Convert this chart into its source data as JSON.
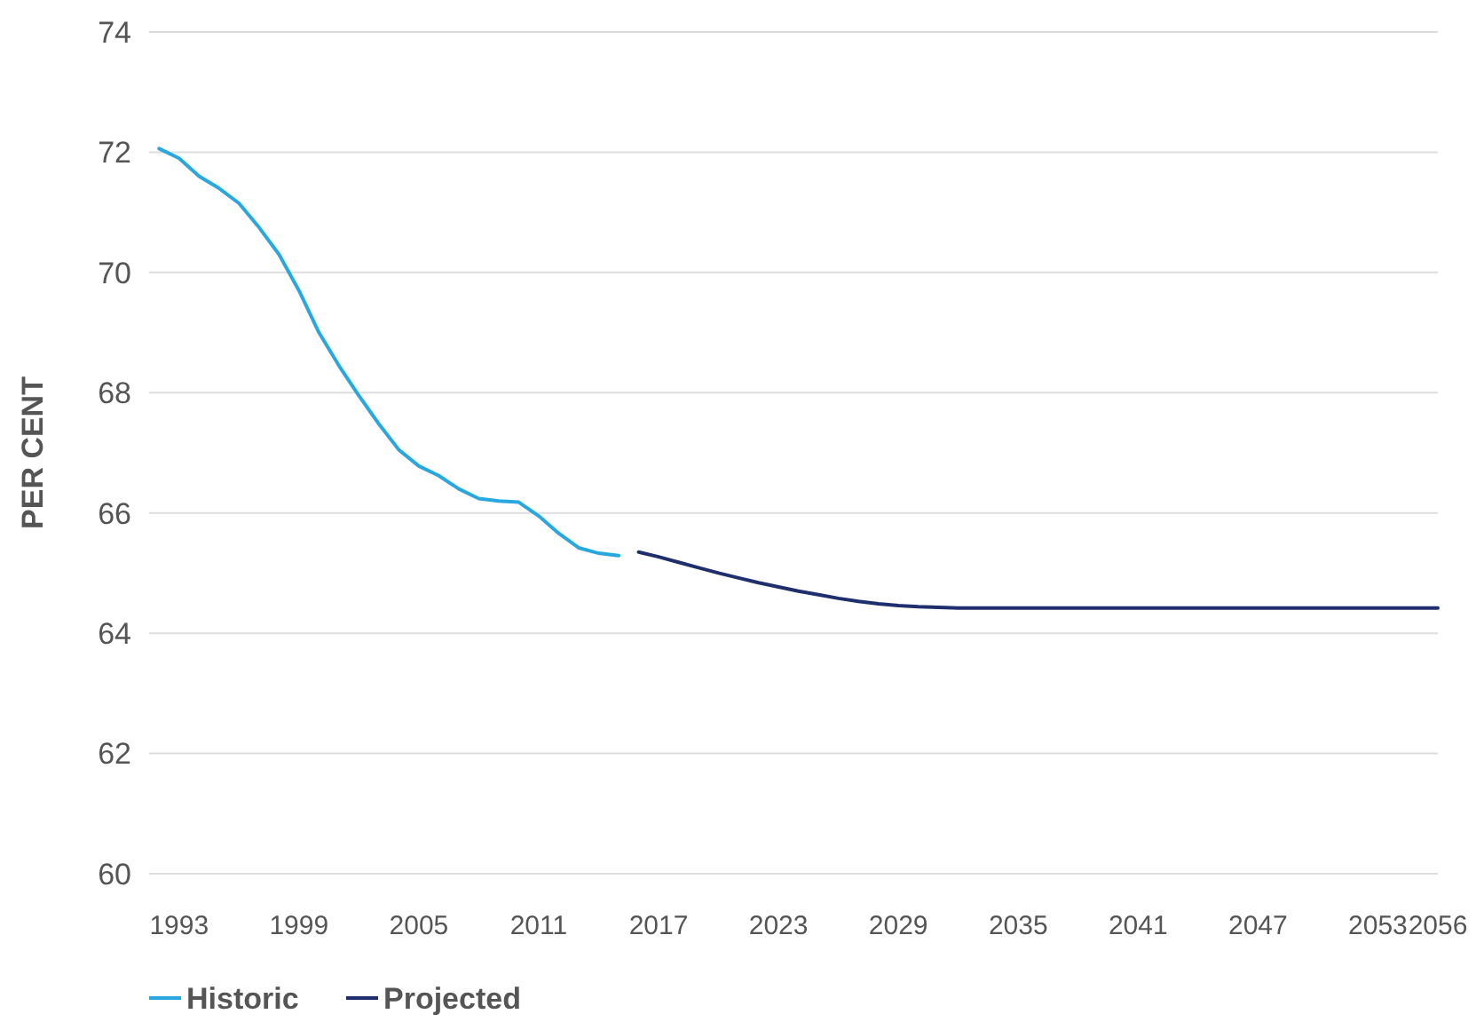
{
  "chart_data": {
    "type": "line",
    "ylabel": "PER CENT",
    "xlim": [
      1991.5,
      2056
    ],
    "ylim": [
      60,
      74
    ],
    "yticks": [
      60,
      62,
      64,
      66,
      68,
      70,
      72,
      74
    ],
    "xticks": [
      1993,
      1999,
      2005,
      2011,
      2017,
      2023,
      2029,
      2035,
      2041,
      2047,
      2053,
      2056
    ],
    "grid": "y",
    "legend": "bottom",
    "marker": "none",
    "line_style": "solid",
    "series": [
      {
        "name": "Historic",
        "color": "#29a8e0",
        "x": [
          1992,
          1993,
          1994,
          1995,
          1996,
          1997,
          1998,
          1999,
          2000,
          2001,
          2002,
          2003,
          2004,
          2005,
          2006,
          2007,
          2008,
          2009,
          2010,
          2011,
          2012,
          2013,
          2014,
          2015
        ],
        "values": [
          72.06,
          71.9,
          71.6,
          71.4,
          71.15,
          70.75,
          70.3,
          69.7,
          69.0,
          68.45,
          67.95,
          67.48,
          67.05,
          66.78,
          66.62,
          66.4,
          66.24,
          66.2,
          66.18,
          65.95,
          65.66,
          65.42,
          65.33,
          65.29
        ]
      },
      {
        "name": "Projected",
        "color": "#1f2f6e",
        "x": [
          2016,
          2017,
          2018,
          2019,
          2020,
          2021,
          2022,
          2023,
          2024,
          2025,
          2026,
          2027,
          2028,
          2029,
          2030,
          2031,
          2032,
          2036,
          2040,
          2044,
          2048,
          2052,
          2056
        ],
        "values": [
          65.35,
          65.27,
          65.18,
          65.09,
          65.0,
          64.92,
          64.84,
          64.77,
          64.7,
          64.64,
          64.58,
          64.53,
          64.49,
          64.46,
          64.44,
          64.43,
          64.42,
          64.42,
          64.42,
          64.42,
          64.42,
          64.42,
          64.42
        ]
      }
    ]
  }
}
